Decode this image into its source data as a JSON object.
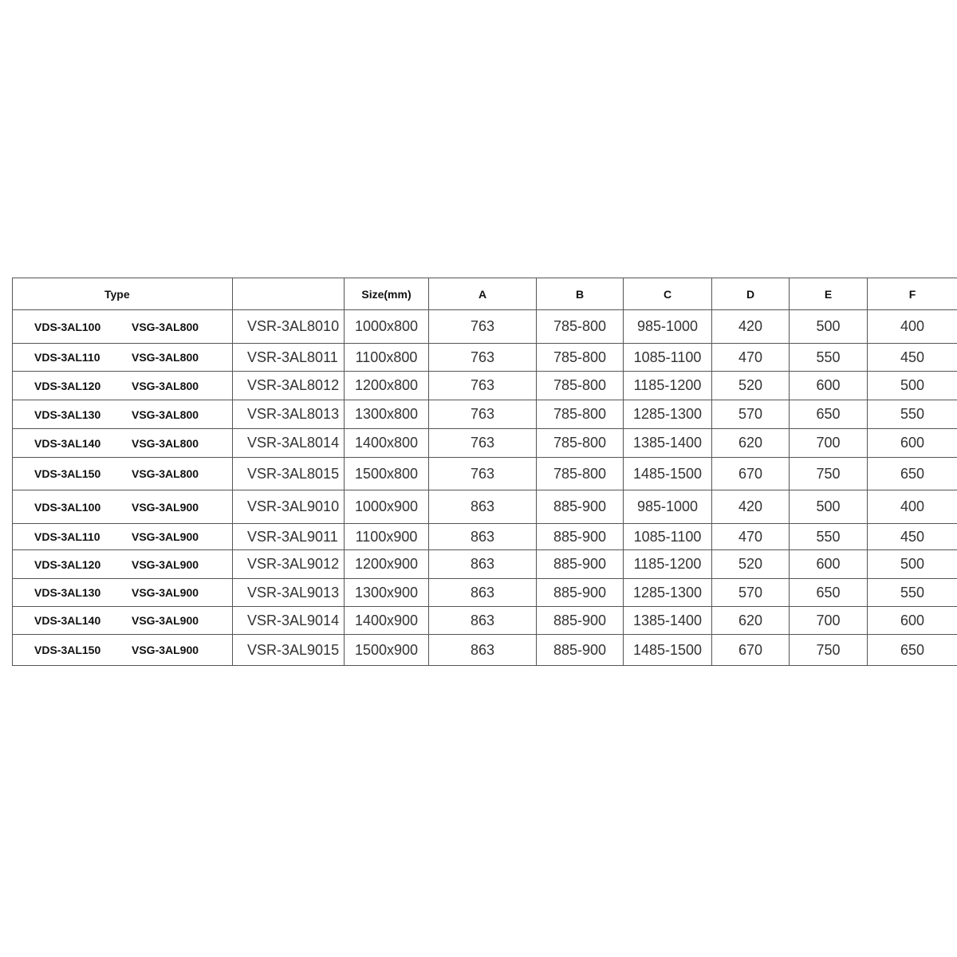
{
  "table": {
    "headers": [
      "Type",
      "",
      "Size(mm)",
      "A",
      "B",
      "C",
      "D",
      "E",
      "F"
    ],
    "rows": [
      {
        "vds": "VDS-3AL100",
        "vsg": "VSG-3AL800",
        "model": "VSR-3AL8010",
        "size": "1000x800",
        "a": "763",
        "b": "785-800",
        "c": "985-1000",
        "d": "420",
        "e": "500",
        "f": "400"
      },
      {
        "vds": "VDS-3AL110",
        "vsg": "VSG-3AL800",
        "model": "VSR-3AL8011",
        "size": "1100x800",
        "a": "763",
        "b": "785-800",
        "c": "1085-1100",
        "d": "470",
        "e": "550",
        "f": "450"
      },
      {
        "vds": "VDS-3AL120",
        "vsg": "VSG-3AL800",
        "model": "VSR-3AL8012",
        "size": "1200x800",
        "a": "763",
        "b": "785-800",
        "c": "1185-1200",
        "d": "520",
        "e": "600",
        "f": "500"
      },
      {
        "vds": "VDS-3AL130",
        "vsg": "VSG-3AL800",
        "model": "VSR-3AL8013",
        "size": "1300x800",
        "a": "763",
        "b": "785-800",
        "c": "1285-1300",
        "d": "570",
        "e": "650",
        "f": "550"
      },
      {
        "vds": "VDS-3AL140",
        "vsg": "VSG-3AL800",
        "model": "VSR-3AL8014",
        "size": "1400x800",
        "a": "763",
        "b": "785-800",
        "c": "1385-1400",
        "d": "620",
        "e": "700",
        "f": "600"
      },
      {
        "vds": "VDS-3AL150",
        "vsg": "VSG-3AL800",
        "model": "VSR-3AL8015",
        "size": "1500x800",
        "a": "763",
        "b": "785-800",
        "c": "1485-1500",
        "d": "670",
        "e": "750",
        "f": "650"
      },
      {
        "vds": "VDS-3AL100",
        "vsg": "VSG-3AL900",
        "model": "VSR-3AL9010",
        "size": "1000x900",
        "a": "863",
        "b": "885-900",
        "c": "985-1000",
        "d": "420",
        "e": "500",
        "f": "400"
      },
      {
        "vds": "VDS-3AL110",
        "vsg": "VSG-3AL900",
        "model": "VSR-3AL9011",
        "size": "1100x900",
        "a": "863",
        "b": "885-900",
        "c": "1085-1100",
        "d": "470",
        "e": "550",
        "f": "450"
      },
      {
        "vds": "VDS-3AL120",
        "vsg": "VSG-3AL900",
        "model": "VSR-3AL9012",
        "size": "1200x900",
        "a": "863",
        "b": "885-900",
        "c": "1185-1200",
        "d": "520",
        "e": "600",
        "f": "500"
      },
      {
        "vds": "VDS-3AL130",
        "vsg": "VSG-3AL900",
        "model": "VSR-3AL9013",
        "size": "1300x900",
        "a": "863",
        "b": "885-900",
        "c": "1285-1300",
        "d": "570",
        "e": "650",
        "f": "550"
      },
      {
        "vds": "VDS-3AL140",
        "vsg": "VSG-3AL900",
        "model": "VSR-3AL9014",
        "size": "1400x900",
        "a": "863",
        "b": "885-900",
        "c": "1385-1400",
        "d": "620",
        "e": "700",
        "f": "600"
      },
      {
        "vds": "VDS-3AL150",
        "vsg": "VSG-3AL900",
        "model": "VSR-3AL9015",
        "size": "1500x900",
        "a": "863",
        "b": "885-900",
        "c": "1485-1500",
        "d": "670",
        "e": "750",
        "f": "650"
      }
    ]
  }
}
